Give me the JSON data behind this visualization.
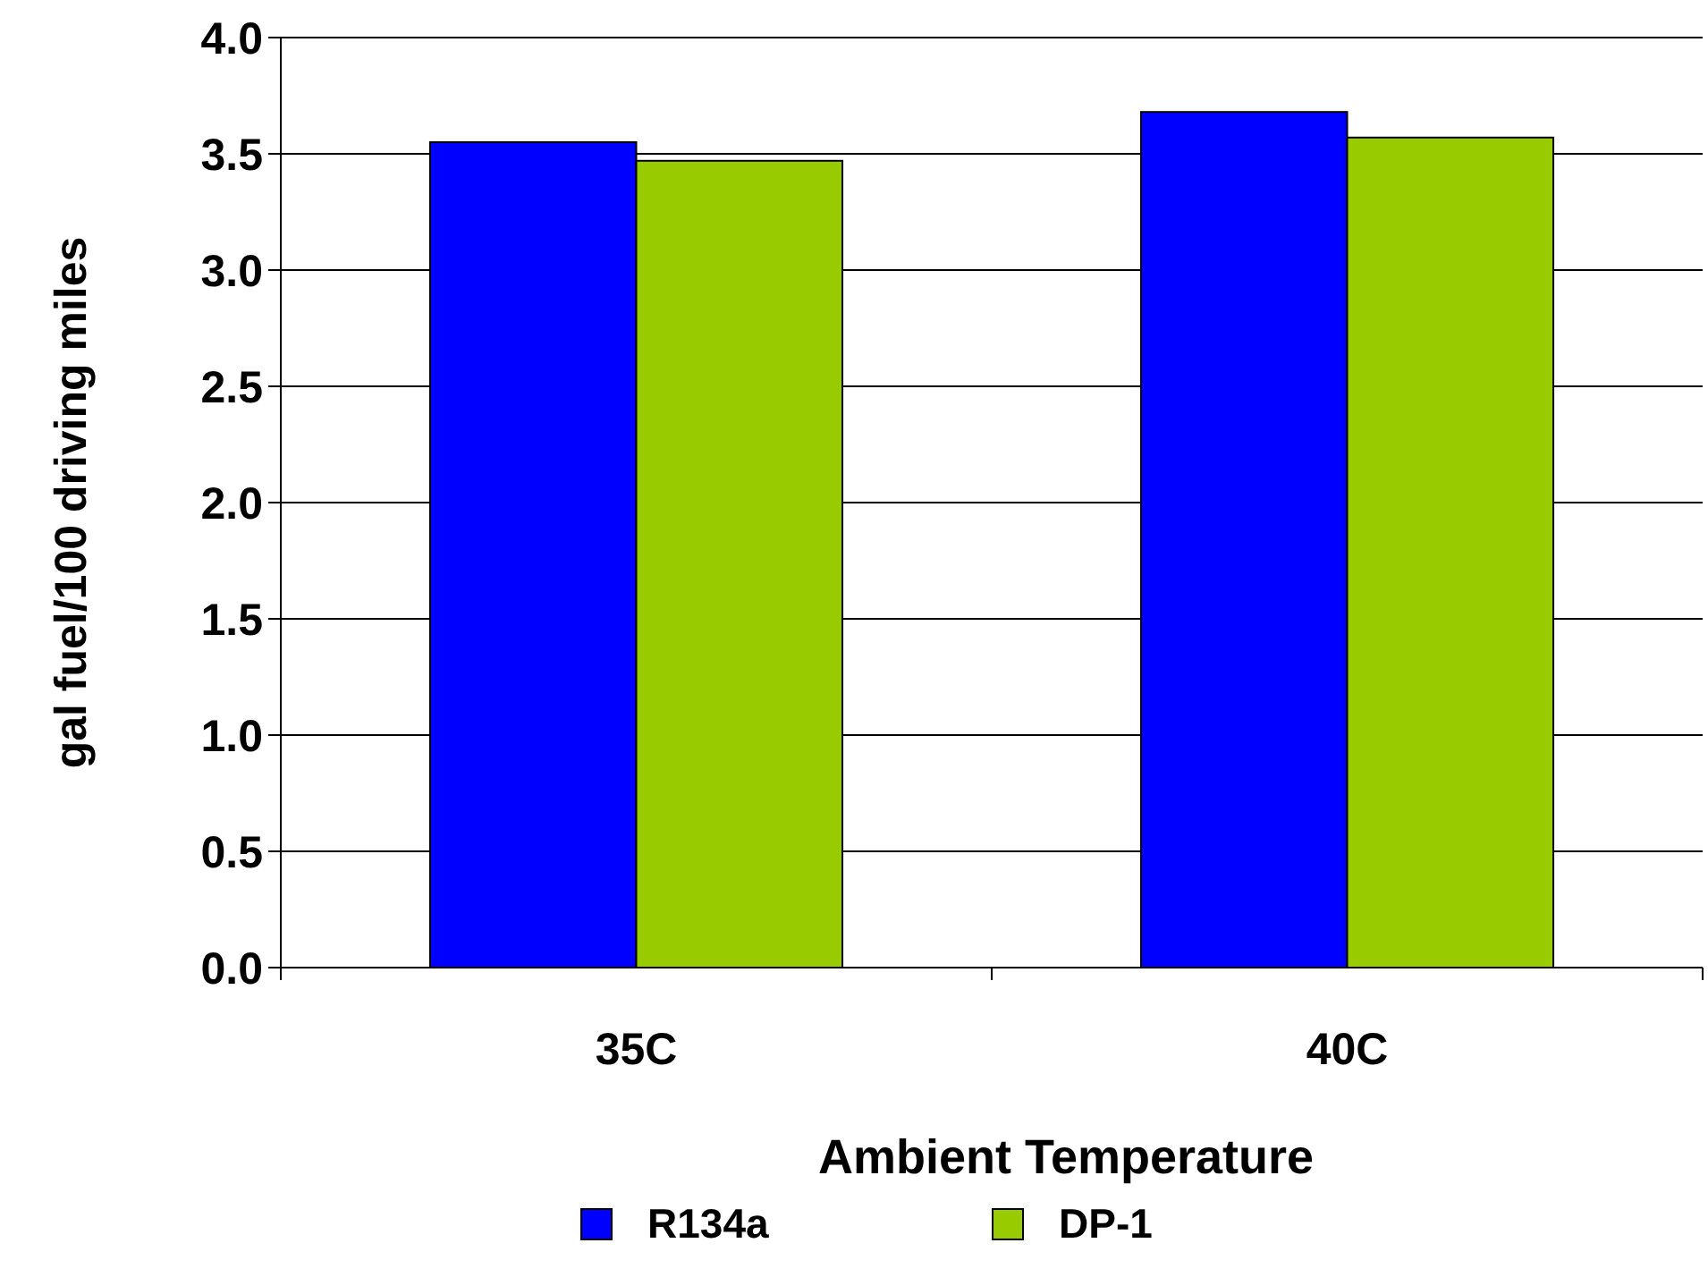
{
  "chart_data": {
    "type": "bar",
    "xlabel": "Ambient Temperature",
    "ylabel": "gal fuel/100 driving miles",
    "categories": [
      "35C",
      "40C"
    ],
    "series": [
      {
        "name": "R134a",
        "color": "#0000ff",
        "values": [
          3.55,
          3.68
        ]
      },
      {
        "name": "DP-1",
        "color": "#99cc00",
        "values": [
          3.47,
          3.57
        ]
      }
    ],
    "ylim": [
      0,
      4
    ],
    "yticks": [
      {
        "value": 0,
        "label": "0.0"
      },
      {
        "value": 0.5,
        "label": "0.5"
      },
      {
        "value": 1,
        "label": "1.0"
      },
      {
        "value": 1.5,
        "label": "1.5"
      },
      {
        "value": 2,
        "label": "2.0"
      },
      {
        "value": 2.5,
        "label": "2.5"
      },
      {
        "value": 3,
        "label": "3.0"
      },
      {
        "value": 3.5,
        "label": "3.5"
      },
      {
        "value": 4,
        "label": "4.0"
      }
    ],
    "grid": "y",
    "legend": "bottom"
  }
}
